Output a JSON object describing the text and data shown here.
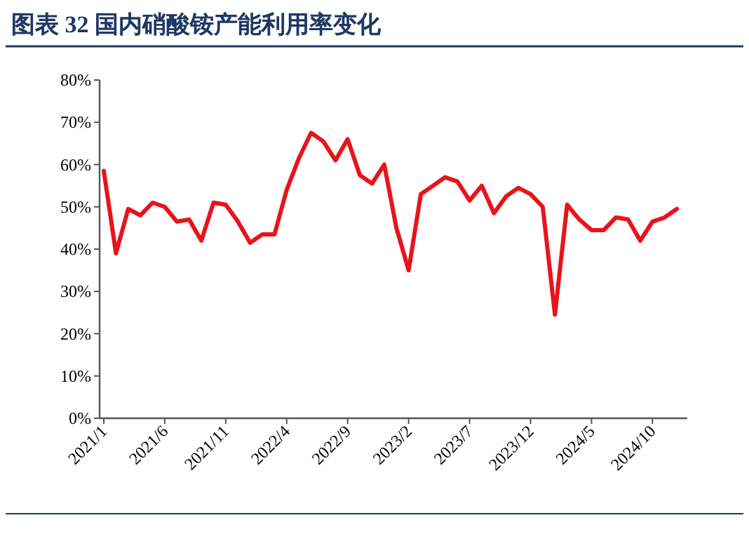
{
  "chart_data": {
    "type": "line",
    "title": "图表 32  国内硝酸铵产能利用率变化",
    "categories": [
      "2021/1",
      null,
      null,
      null,
      null,
      "2021/6",
      null,
      null,
      null,
      null,
      "2021/11",
      null,
      null,
      null,
      null,
      "2022/4",
      null,
      null,
      null,
      null,
      "2022/9",
      null,
      null,
      null,
      null,
      "2023/2",
      null,
      null,
      null,
      null,
      "2023/7",
      null,
      null,
      null,
      null,
      "2023/12",
      null,
      null,
      null,
      null,
      "2024/5",
      null,
      null,
      null,
      null,
      "2024/10",
      null,
      null
    ],
    "series": [
      {
        "color": "#e8141c",
        "values": [
          58.5,
          39,
          49.5,
          48,
          51,
          50,
          46.5,
          47,
          42,
          51,
          50.5,
          46.5,
          41.5,
          43.5,
          43.5,
          54,
          61.5,
          67.5,
          65.5,
          61,
          66,
          57.5,
          55.5,
          60,
          45,
          35,
          53,
          55,
          57,
          56,
          51.5,
          55,
          48.5,
          52.5,
          54.5,
          53,
          50,
          24.5,
          50.5,
          47,
          44.5,
          44.5,
          47.5,
          47,
          42,
          46.5,
          47.5,
          49.5
        ]
      }
    ],
    "ylim": [
      0,
      80
    ],
    "yticks": [
      {
        "value": 0,
        "label": "0%"
      },
      {
        "value": 10,
        "label": "10%"
      },
      {
        "value": 20,
        "label": "20%"
      },
      {
        "value": 30,
        "label": "30%"
      },
      {
        "value": 40,
        "label": "40%"
      },
      {
        "value": 50,
        "label": "50%"
      },
      {
        "value": 60,
        "label": "60%"
      },
      {
        "value": 70,
        "label": "70%"
      },
      {
        "value": 80,
        "label": "80%"
      }
    ],
    "grid": false,
    "marker": "none",
    "line_style": "solid"
  }
}
